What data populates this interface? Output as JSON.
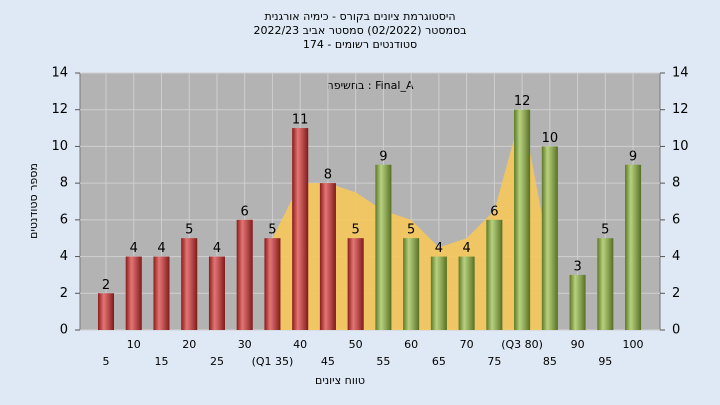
{
  "chart_data": {
    "type": "bar",
    "title_lines": [
      "היסטוגרמת ציונים בקורס - כימיה אורגנית",
      "בסמסטר  (02/2022)  סמסטר אביב 2022/23",
      "סטודנטים רשומים - 174"
    ],
    "annotation": "בחשיפה : Final_A",
    "x_label": "טווח ציונים",
    "y_label": "מספר סטודנטים",
    "categories": [
      "5",
      "10",
      "15",
      "20",
      "25",
      "30",
      "(Q1 35)",
      "40",
      "45",
      "50",
      "55",
      "60",
      "65",
      "70",
      "75",
      "(Q3 80)",
      "85",
      "90",
      "95",
      "100"
    ],
    "values": [
      2,
      4,
      4,
      5,
      4,
      6,
      5,
      11,
      8,
      5,
      9,
      5,
      4,
      4,
      6,
      12,
      10,
      3,
      5,
      9
    ],
    "colors": [
      "#d42a2a",
      "#d42a2a",
      "#d42a2a",
      "#d42a2a",
      "#d42a2a",
      "#d42a2a",
      "#d42a2a",
      "#d42a2a",
      "#d42a2a",
      "#d42a2a",
      "#8fb83a",
      "#8fb83a",
      "#8fb83a",
      "#8fb83a",
      "#8fb83a",
      "#8fb83a",
      "#8fb83a",
      "#8fb83a",
      "#8fb83a",
      "#8fb83a"
    ],
    "area": {
      "color": "#f5c85a",
      "values": [
        null,
        null,
        null,
        null,
        null,
        null,
        5,
        8,
        8,
        7.5,
        6.5,
        6,
        4.5,
        5,
        6.5,
        12,
        4,
        null,
        null,
        null
      ]
    },
    "ylim": [
      0,
      14
    ],
    "yticks": [
      0,
      2,
      4,
      6,
      8,
      10,
      12,
      14
    ],
    "y2lim": [
      0,
      14
    ],
    "y2ticks": [
      0,
      2,
      4,
      6,
      8,
      10,
      12,
      14
    ],
    "grid": true
  }
}
